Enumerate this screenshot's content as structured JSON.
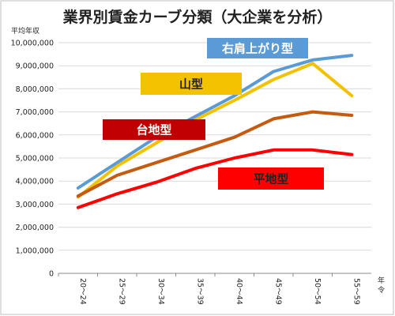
{
  "chart_data": {
    "type": "line",
    "title": "業界別賃金カーブ分類（大企業を分析）",
    "ylabel": "平均年収",
    "xlabel": "年令",
    "categories": [
      "20～24",
      "25～29",
      "30～34",
      "35～39",
      "40～44",
      "45～49",
      "50～54",
      "55～59"
    ],
    "yticks": [
      "0",
      "1,000,000",
      "2,000,000",
      "3,000,000",
      "4,000,000",
      "5,000,000",
      "6,000,000",
      "7,000,000",
      "8,000,000",
      "9,000,000",
      "10,000,000"
    ],
    "ylim": [
      0,
      10000000
    ],
    "grid": true,
    "series": [
      {
        "name": "右肩上がり型",
        "color": "#5b9bd5",
        "values": [
          3700000,
          4800000,
          5900000,
          6800000,
          7700000,
          8750000,
          9250000,
          9450000
        ]
      },
      {
        "name": "山型",
        "color": "#f2c200",
        "values": [
          3300000,
          4650000,
          5650000,
          6650000,
          7500000,
          8400000,
          9100000,
          7700000
        ]
      },
      {
        "name": "台地型",
        "color": "#c55a11",
        "values": [
          3350000,
          4250000,
          4800000,
          5350000,
          5900000,
          6700000,
          7000000,
          6850000
        ]
      },
      {
        "name": "平地型",
        "color": "#ff0000",
        "values": [
          2850000,
          3450000,
          3950000,
          4550000,
          5000000,
          5350000,
          5350000,
          5150000
        ]
      }
    ],
    "callouts": [
      {
        "label": "右肩上がり型",
        "bg": "#5b9bd5",
        "text_color": "#ffffff"
      },
      {
        "label": "山型",
        "bg": "#f2c200",
        "text_color": "#222222"
      },
      {
        "label": "台地型",
        "bg": "#c00000",
        "text_color": "#ffffff"
      },
      {
        "label": "平地型",
        "bg": "#ff0000",
        "text_color": "#222222"
      }
    ]
  }
}
